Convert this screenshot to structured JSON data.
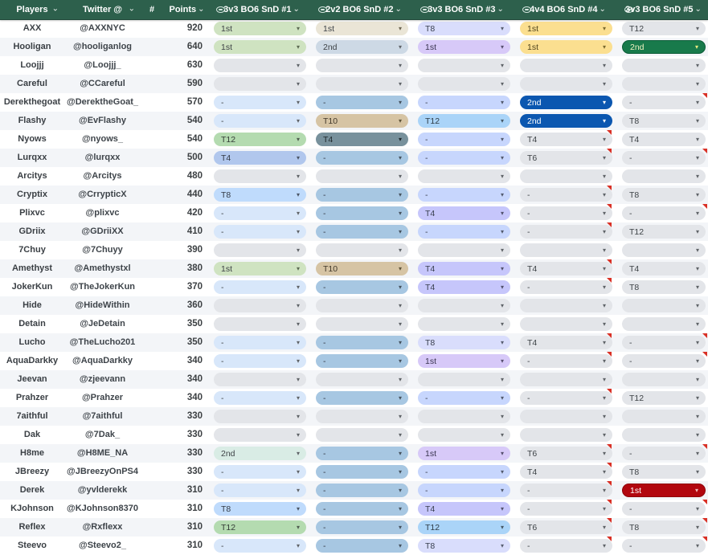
{
  "header": {
    "players_label": "Players",
    "twitter_label": "Twitter @",
    "hash_label": "#",
    "points_label": "Points",
    "chevron_glyph": "⌄",
    "bg_color": "#2d604c",
    "events": [
      {
        "label": "3v3 BO6 SnD #1"
      },
      {
        "label": "2v2 BO6 SnD #2"
      },
      {
        "label": "3v3 BO6 SnD #3"
      },
      {
        "label": "4v4 BO6 SnD #4"
      },
      {
        "label": "3v3 BO6 SnD #5"
      }
    ]
  },
  "arrow_glyph": "▾",
  "note_color": "#d93025",
  "stripe_color": "#f3f5f8",
  "palette": {
    "empty": {
      "bg": "#e3e5e9",
      "fg": "#3e4347",
      "ar": "#5f6368"
    },
    "plain": {
      "bg": "#e3e5e9",
      "fg": "#3e4347",
      "ar": "#5f6368"
    },
    "g1": {
      "bg": "#cfe3c1",
      "fg": "#3e4347",
      "ar": "#5c6a52"
    },
    "mint": {
      "bg": "#d9ece5",
      "fg": "#3e4347",
      "ar": "#5f6368"
    },
    "t12g": {
      "bg": "#b4dbb0",
      "fg": "#333c36",
      "ar": "#4f5d50"
    },
    "t4b": {
      "bg": "#b1c7ed",
      "fg": "#333a45",
      "ar": "#4a5565"
    },
    "t8b": {
      "bg": "#bfdbfc",
      "fg": "#333a45",
      "ar": "#4a5565"
    },
    "lblue": {
      "bg": "#d8e7fa",
      "fg": "#3e4347",
      "ar": "#5f6368"
    },
    "beige": {
      "bg": "#eae5d6",
      "fg": "#3e4347",
      "ar": "#6b6450"
    },
    "bgray": {
      "bg": "#cdd9e5",
      "fg": "#3e4347",
      "ar": "#5f6368"
    },
    "tan": {
      "bg": "#d6c4a4",
      "fg": "#42392a",
      "ar": "#5e5338"
    },
    "slate": {
      "bg": "#78919c",
      "fg": "#1e272b",
      "ar": "#1e272b"
    },
    "steel": {
      "bg": "#a7c7e2",
      "fg": "#333a45",
      "ar": "#46525e"
    },
    "peri": {
      "bg": "#c7d6fd",
      "fg": "#3a4050",
      "ar": "#525a6e"
    },
    "periT": {
      "bg": "#c6c6fb",
      "fg": "#3a4050",
      "ar": "#52526e"
    },
    "lav": {
      "bg": "#d9ddfc",
      "fg": "#3a4050",
      "ar": "#585e72"
    },
    "purp": {
      "bg": "#d7c9f8",
      "fg": "#3a3550",
      "ar": "#585070"
    },
    "sky": {
      "bg": "#aad4f8",
      "fg": "#2f3c46",
      "ar": "#465866"
    },
    "gold": {
      "bg": "#fbdf90",
      "fg": "#51461f",
      "ar": "#7a6a2f"
    },
    "dblue": {
      "bg": "#0b57b0",
      "fg": "#ffffff",
      "ar": "#ffffff"
    },
    "dgreen": {
      "bg": "#187a4b",
      "fg": "#eff2c0",
      "ar": "#e8e980",
      "bd": "#0c5c38"
    },
    "dred": {
      "bg": "#b2070f",
      "fg": "#ffffff",
      "ar": "#f0b9b9",
      "bd": "#8f050b"
    }
  },
  "rows": [
    {
      "player": "AXX",
      "twitter": "@AXXNYC",
      "points": "920",
      "cells": [
        {
          "v": "1st",
          "s": "g1"
        },
        {
          "v": "1st",
          "s": "beige"
        },
        {
          "v": "T8",
          "s": "lav"
        },
        {
          "v": "1st",
          "s": "gold"
        },
        {
          "v": "T12",
          "s": "plain"
        }
      ]
    },
    {
      "player": "Hooligan",
      "twitter": "@hooliganlog",
      "points": "640",
      "cells": [
        {
          "v": "1st",
          "s": "g1"
        },
        {
          "v": "2nd",
          "s": "bgray"
        },
        {
          "v": "1st",
          "s": "purp"
        },
        {
          "v": "1st",
          "s": "gold"
        },
        {
          "v": "2nd",
          "s": "dgreen"
        }
      ]
    },
    {
      "player": "Loojjj",
      "twitter": "@Loojjj_",
      "points": "630",
      "cells": [
        {
          "v": "",
          "s": "empty"
        },
        {
          "v": "",
          "s": "empty"
        },
        {
          "v": "",
          "s": "empty"
        },
        {
          "v": "",
          "s": "empty"
        },
        {
          "v": "",
          "s": "empty"
        }
      ]
    },
    {
      "player": "Careful",
      "twitter": "@CCareful",
      "points": "590",
      "cells": [
        {
          "v": "",
          "s": "empty"
        },
        {
          "v": "",
          "s": "empty"
        },
        {
          "v": "",
          "s": "empty"
        },
        {
          "v": "",
          "s": "empty"
        },
        {
          "v": "",
          "s": "empty"
        }
      ]
    },
    {
      "player": "Derekthegoat",
      "twitter": "@DerektheGoat_",
      "points": "570",
      "cells": [
        {
          "v": "-",
          "s": "lblue"
        },
        {
          "v": "-",
          "s": "steel"
        },
        {
          "v": "-",
          "s": "peri"
        },
        {
          "v": "2nd",
          "s": "dblue"
        },
        {
          "v": "-",
          "s": "plain",
          "note": true
        }
      ]
    },
    {
      "player": "Flashy",
      "twitter": "@EvFlashy",
      "points": "540",
      "cells": [
        {
          "v": "-",
          "s": "lblue"
        },
        {
          "v": "T10",
          "s": "tan"
        },
        {
          "v": "T12",
          "s": "sky"
        },
        {
          "v": "2nd",
          "s": "dblue"
        },
        {
          "v": "T8",
          "s": "plain"
        }
      ]
    },
    {
      "player": "Nyows",
      "twitter": "@nyows_",
      "points": "540",
      "cells": [
        {
          "v": "T12",
          "s": "t12g"
        },
        {
          "v": "T4",
          "s": "slate"
        },
        {
          "v": "-",
          "s": "peri"
        },
        {
          "v": "T4",
          "s": "plain",
          "note": true
        },
        {
          "v": "T4",
          "s": "plain"
        }
      ]
    },
    {
      "player": "Lurqxx",
      "twitter": "@lurqxx",
      "points": "500",
      "cells": [
        {
          "v": "T4",
          "s": "t4b"
        },
        {
          "v": "-",
          "s": "steel"
        },
        {
          "v": "-",
          "s": "peri"
        },
        {
          "v": "T6",
          "s": "plain",
          "note": true
        },
        {
          "v": "-",
          "s": "plain",
          "note": true
        }
      ]
    },
    {
      "player": "Arcitys",
      "twitter": "@Arcitys",
      "points": "480",
      "cells": [
        {
          "v": "",
          "s": "empty"
        },
        {
          "v": "",
          "s": "empty"
        },
        {
          "v": "",
          "s": "empty"
        },
        {
          "v": "",
          "s": "empty"
        },
        {
          "v": "",
          "s": "empty"
        }
      ]
    },
    {
      "player": "Cryptix",
      "twitter": "@CrrypticX",
      "points": "440",
      "cells": [
        {
          "v": "T8",
          "s": "t8b"
        },
        {
          "v": "-",
          "s": "steel"
        },
        {
          "v": "-",
          "s": "peri"
        },
        {
          "v": "-",
          "s": "plain",
          "note": true
        },
        {
          "v": "T8",
          "s": "plain"
        }
      ]
    },
    {
      "player": "Plixvc",
      "twitter": "@plixvc",
      "points": "420",
      "cells": [
        {
          "v": "-",
          "s": "lblue"
        },
        {
          "v": "-",
          "s": "steel"
        },
        {
          "v": "T4",
          "s": "periT"
        },
        {
          "v": "-",
          "s": "plain",
          "note": true
        },
        {
          "v": "-",
          "s": "plain",
          "note": true
        }
      ]
    },
    {
      "player": "GDriix",
      "twitter": "@GDriiXX",
      "points": "410",
      "cells": [
        {
          "v": "-",
          "s": "lblue"
        },
        {
          "v": "-",
          "s": "steel"
        },
        {
          "v": "-",
          "s": "peri"
        },
        {
          "v": "-",
          "s": "plain",
          "note": true
        },
        {
          "v": "T12",
          "s": "plain"
        }
      ]
    },
    {
      "player": "7Chuy",
      "twitter": "@7Chuyy",
      "points": "390",
      "cells": [
        {
          "v": "",
          "s": "empty"
        },
        {
          "v": "",
          "s": "empty"
        },
        {
          "v": "",
          "s": "empty"
        },
        {
          "v": "",
          "s": "empty"
        },
        {
          "v": "",
          "s": "empty"
        }
      ]
    },
    {
      "player": "Amethyst",
      "twitter": "@Amethystxl",
      "points": "380",
      "cells": [
        {
          "v": "1st",
          "s": "g1"
        },
        {
          "v": "T10",
          "s": "tan"
        },
        {
          "v": "T4",
          "s": "periT"
        },
        {
          "v": "T4",
          "s": "plain",
          "note": true
        },
        {
          "v": "T4",
          "s": "plain"
        }
      ]
    },
    {
      "player": "JokerKun",
      "twitter": "@TheJokerKun",
      "points": "370",
      "cells": [
        {
          "v": "-",
          "s": "lblue"
        },
        {
          "v": "-",
          "s": "steel"
        },
        {
          "v": "T4",
          "s": "periT"
        },
        {
          "v": "-",
          "s": "plain",
          "note": true
        },
        {
          "v": "T8",
          "s": "plain"
        }
      ]
    },
    {
      "player": "Hide",
      "twitter": "@HideWithin",
      "points": "360",
      "cells": [
        {
          "v": "",
          "s": "empty"
        },
        {
          "v": "",
          "s": "empty"
        },
        {
          "v": "",
          "s": "empty"
        },
        {
          "v": "",
          "s": "empty"
        },
        {
          "v": "",
          "s": "empty"
        }
      ]
    },
    {
      "player": "Detain",
      "twitter": "@JeDetain",
      "points": "350",
      "cells": [
        {
          "v": "",
          "s": "empty"
        },
        {
          "v": "",
          "s": "empty"
        },
        {
          "v": "",
          "s": "empty"
        },
        {
          "v": "",
          "s": "empty"
        },
        {
          "v": "",
          "s": "empty"
        }
      ]
    },
    {
      "player": "Lucho",
      "twitter": "@TheLucho201",
      "points": "350",
      "cells": [
        {
          "v": "-",
          "s": "lblue"
        },
        {
          "v": "-",
          "s": "steel"
        },
        {
          "v": "T8",
          "s": "lav"
        },
        {
          "v": "T4",
          "s": "plain",
          "note": true
        },
        {
          "v": "-",
          "s": "plain",
          "note": true
        }
      ]
    },
    {
      "player": "AquaDarkky",
      "twitter": "@AquaDarkky",
      "points": "340",
      "cells": [
        {
          "v": "-",
          "s": "lblue"
        },
        {
          "v": "-",
          "s": "steel"
        },
        {
          "v": "1st",
          "s": "purp"
        },
        {
          "v": "-",
          "s": "plain",
          "note": true
        },
        {
          "v": "-",
          "s": "plain",
          "note": true
        }
      ]
    },
    {
      "player": "Jeevan",
      "twitter": "@zjeevann",
      "points": "340",
      "cells": [
        {
          "v": "",
          "s": "empty"
        },
        {
          "v": "",
          "s": "empty"
        },
        {
          "v": "",
          "s": "empty"
        },
        {
          "v": "",
          "s": "empty"
        },
        {
          "v": "",
          "s": "empty"
        }
      ]
    },
    {
      "player": "Prahzer",
      "twitter": "@Prahzer",
      "points": "340",
      "cells": [
        {
          "v": "-",
          "s": "lblue"
        },
        {
          "v": "-",
          "s": "steel"
        },
        {
          "v": "-",
          "s": "peri"
        },
        {
          "v": "-",
          "s": "plain",
          "note": true
        },
        {
          "v": "T12",
          "s": "plain"
        }
      ]
    },
    {
      "player": "7aithful",
      "twitter": "@7aithful",
      "points": "330",
      "cells": [
        {
          "v": "",
          "s": "empty"
        },
        {
          "v": "",
          "s": "empty"
        },
        {
          "v": "",
          "s": "empty"
        },
        {
          "v": "",
          "s": "empty"
        },
        {
          "v": "",
          "s": "empty"
        }
      ]
    },
    {
      "player": "Dak",
      "twitter": "@7Dak_",
      "points": "330",
      "cells": [
        {
          "v": "",
          "s": "empty"
        },
        {
          "v": "",
          "s": "empty"
        },
        {
          "v": "",
          "s": "empty"
        },
        {
          "v": "",
          "s": "empty"
        },
        {
          "v": "",
          "s": "empty"
        }
      ]
    },
    {
      "player": "H8me",
      "twitter": "@H8ME_NA",
      "points": "330",
      "cells": [
        {
          "v": "2nd",
          "s": "mint"
        },
        {
          "v": "-",
          "s": "steel"
        },
        {
          "v": "1st",
          "s": "purp"
        },
        {
          "v": "T6",
          "s": "plain",
          "note": true
        },
        {
          "v": "-",
          "s": "plain",
          "note": true
        }
      ]
    },
    {
      "player": "JBreezy",
      "twitter": "@JBreezyOnPS4",
      "points": "330",
      "cells": [
        {
          "v": "-",
          "s": "lblue"
        },
        {
          "v": "-",
          "s": "steel"
        },
        {
          "v": "-",
          "s": "peri"
        },
        {
          "v": "T4",
          "s": "plain",
          "note": true
        },
        {
          "v": "T8",
          "s": "plain"
        }
      ]
    },
    {
      "player": "Derek",
      "twitter": "@yvlderekk",
      "points": "310",
      "cells": [
        {
          "v": "-",
          "s": "lblue"
        },
        {
          "v": "-",
          "s": "steel"
        },
        {
          "v": "-",
          "s": "peri"
        },
        {
          "v": "-",
          "s": "plain",
          "note": true
        },
        {
          "v": "1st",
          "s": "dred"
        }
      ]
    },
    {
      "player": "KJohnson",
      "twitter": "@KJohnson8370",
      "points": "310",
      "cells": [
        {
          "v": "T8",
          "s": "t8b"
        },
        {
          "v": "-",
          "s": "steel"
        },
        {
          "v": "T4",
          "s": "periT"
        },
        {
          "v": "-",
          "s": "plain",
          "note": true
        },
        {
          "v": "-",
          "s": "plain",
          "note": true
        }
      ]
    },
    {
      "player": "Reflex",
      "twitter": "@Rxflexx",
      "points": "310",
      "cells": [
        {
          "v": "T12",
          "s": "t12g"
        },
        {
          "v": "-",
          "s": "steel"
        },
        {
          "v": "T12",
          "s": "sky"
        },
        {
          "v": "T6",
          "s": "plain",
          "note": true
        },
        {
          "v": "T8",
          "s": "plain",
          "note": true
        }
      ]
    },
    {
      "player": "Steevo",
      "twitter": "@Steevo2_",
      "points": "310",
      "cells": [
        {
          "v": "-",
          "s": "lblue"
        },
        {
          "v": "-",
          "s": "steel"
        },
        {
          "v": "T8",
          "s": "lav"
        },
        {
          "v": "-",
          "s": "plain",
          "note": true
        },
        {
          "v": "-",
          "s": "plain",
          "note": true
        }
      ]
    }
  ]
}
